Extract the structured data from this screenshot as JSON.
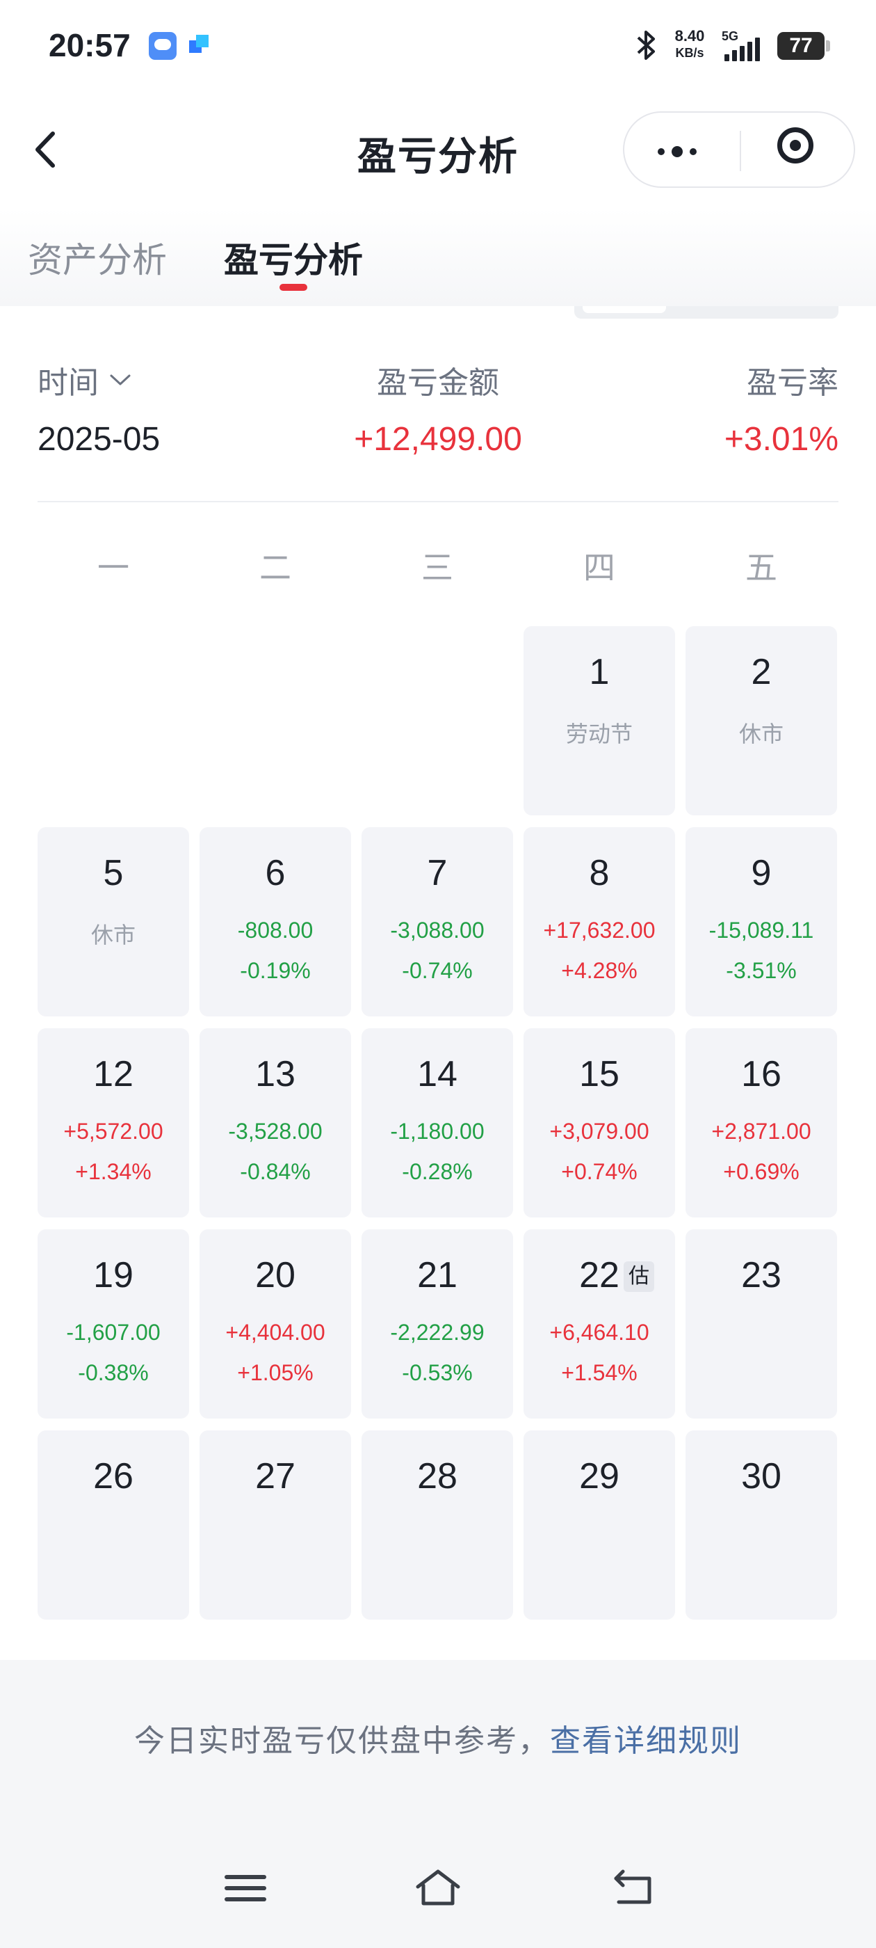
{
  "status_bar": {
    "time": "20:57",
    "net_speed_value": "8.40",
    "net_speed_unit": "KB/s",
    "network_label": "5G",
    "battery": "77",
    "icons": [
      "weather-app-icon",
      "blue-app-icon",
      "bluetooth-icon",
      "signal-icon",
      "battery-icon"
    ]
  },
  "nav": {
    "title": "盈亏分析",
    "back_icon": "chevron-left-icon",
    "more_icon": "more-dots-icon",
    "close_icon": "target-ring-icon"
  },
  "tabs": [
    {
      "label": "资产分析",
      "active": false
    },
    {
      "label": "盈亏分析",
      "active": true
    }
  ],
  "colors": {
    "profit": "#e8323c",
    "loss": "#22a046",
    "accent": "#e8323c"
  },
  "summary": {
    "time_label": "时间",
    "amount_label": "盈亏金额",
    "rate_label": "盈亏率",
    "month": "2025-05",
    "amount": "+12,499.00",
    "rate": "+3.01%"
  },
  "weekdays": [
    "一",
    "二",
    "三",
    "四",
    "五"
  ],
  "calendar": [
    {
      "day": "1",
      "note": "劳动节"
    },
    {
      "day": "2",
      "note": "休市"
    },
    {
      "day": "5",
      "note": "休市"
    },
    {
      "day": "6",
      "amount": "-808.00",
      "rate": "-0.19%"
    },
    {
      "day": "7",
      "amount": "-3,088.00",
      "rate": "-0.74%"
    },
    {
      "day": "8",
      "amount": "+17,632.00",
      "rate": "+4.28%"
    },
    {
      "day": "9",
      "amount": "-15,089.11",
      "rate": "-3.51%"
    },
    {
      "day": "12",
      "amount": "+5,572.00",
      "rate": "+1.34%"
    },
    {
      "day": "13",
      "amount": "-3,528.00",
      "rate": "-0.84%"
    },
    {
      "day": "14",
      "amount": "-1,180.00",
      "rate": "-0.28%"
    },
    {
      "day": "15",
      "amount": "+3,079.00",
      "rate": "+0.74%"
    },
    {
      "day": "16",
      "amount": "+2,871.00",
      "rate": "+0.69%"
    },
    {
      "day": "19",
      "amount": "-1,607.00",
      "rate": "-0.38%"
    },
    {
      "day": "20",
      "amount": "+4,404.00",
      "rate": "+1.05%"
    },
    {
      "day": "21",
      "amount": "-2,222.99",
      "rate": "-0.53%"
    },
    {
      "day": "22",
      "badge": "估",
      "amount": "+6,464.10",
      "rate": "+1.54%"
    },
    {
      "day": "23"
    },
    {
      "day": "26"
    },
    {
      "day": "27"
    },
    {
      "day": "28"
    },
    {
      "day": "29"
    },
    {
      "day": "30"
    }
  ],
  "footer": {
    "note_text": "今日实时盈亏仅供盘中参考，",
    "note_link": "查看详细规则"
  },
  "system_nav": {
    "icons": [
      "menu-lines-icon",
      "home-icon",
      "back-arrow-icon"
    ]
  }
}
